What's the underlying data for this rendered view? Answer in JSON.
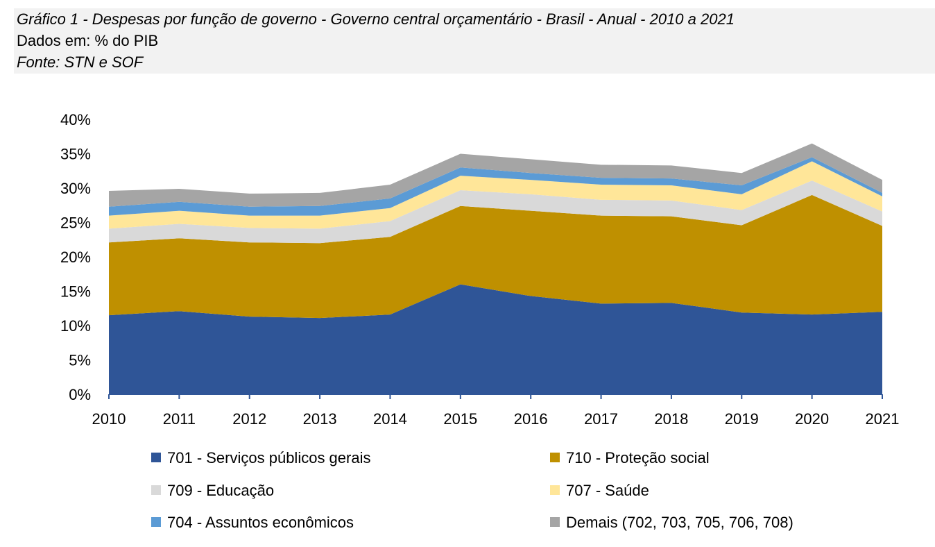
{
  "header": {
    "title": "Gráfico 1 - Despesas por função de governo - Governo central orçamentário - Brasil - Anual - 2010 a 2021",
    "units": "Dados em: % do PIB",
    "source": "Fonte: STN e SOF"
  },
  "chart_data": {
    "type": "area",
    "stacked": true,
    "categories": [
      "2010",
      "2011",
      "2012",
      "2013",
      "2014",
      "2015",
      "2016",
      "2017",
      "2018",
      "2019",
      "2020",
      "2021"
    ],
    "ylim": [
      0,
      40
    ],
    "yticks": [
      0,
      5,
      10,
      15,
      20,
      25,
      30,
      35,
      40
    ],
    "ytick_labels": [
      "0%",
      "5%",
      "10%",
      "15%",
      "20%",
      "25%",
      "30%",
      "35%",
      "40%"
    ],
    "grid": false,
    "legend_position": "bottom",
    "series": [
      {
        "name": "701 - Serviços públicos gerais",
        "color": "#2f5597",
        "values": [
          11.5,
          12.1,
          11.3,
          11.1,
          11.6,
          16.0,
          14.3,
          13.2,
          13.3,
          11.9,
          11.6,
          12.0
        ]
      },
      {
        "name": "710 - Proteção social",
        "color": "#bf9000",
        "values": [
          10.6,
          10.6,
          10.8,
          10.9,
          11.3,
          11.4,
          12.4,
          12.8,
          12.6,
          12.7,
          17.4,
          12.5
        ]
      },
      {
        "name": "709 - Educação",
        "color": "#d9d9d9",
        "values": [
          2.0,
          2.1,
          2.1,
          2.1,
          2.3,
          2.3,
          2.4,
          2.3,
          2.3,
          2.2,
          2.1,
          2.1
        ]
      },
      {
        "name": "707 - Saúde",
        "color": "#ffe699",
        "values": [
          1.9,
          1.9,
          1.8,
          1.9,
          1.9,
          2.1,
          2.1,
          2.2,
          2.2,
          2.3,
          2.8,
          2.2
        ]
      },
      {
        "name": "704 - Assuntos econômicos",
        "color": "#5b9bd5",
        "values": [
          1.3,
          1.3,
          1.3,
          1.4,
          1.4,
          1.2,
          1.0,
          1.0,
          1.0,
          1.3,
          0.6,
          0.5
        ]
      },
      {
        "name": "Demais (702, 703, 705, 706, 708)",
        "color": "#a5a5a5",
        "values": [
          2.3,
          1.9,
          1.9,
          1.9,
          2.0,
          2.0,
          2.0,
          1.9,
          1.9,
          1.8,
          2.0,
          1.9
        ]
      }
    ]
  }
}
